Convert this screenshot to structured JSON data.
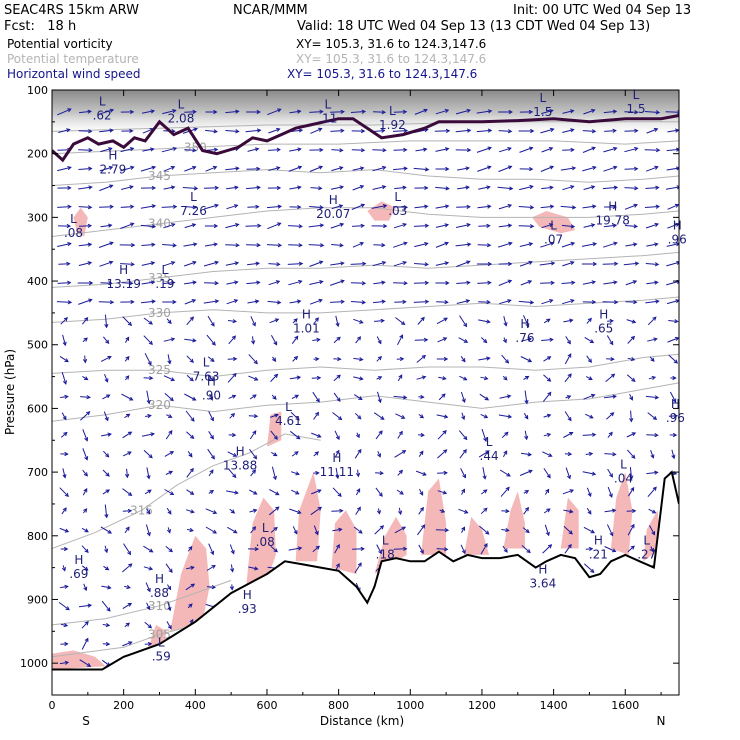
{
  "header": {
    "model": "SEAC4RS 15km ARW",
    "center": "NCAR/MMM",
    "init": "Init: 00 UTC Wed 04 Sep 13",
    "fcst": "Fcst:   18 h",
    "valid": "Valid: 18 UTC Wed 04 Sep 13 (13 CDT Wed 04 Sep 13)",
    "fields": [
      {
        "name": "Potential vorticity",
        "xy": "XY= 105.3, 31.6 to 124.3,147.6",
        "color": "#000000"
      },
      {
        "name": "Potential temperature",
        "xy": "XY= 105.3, 31.6 to 124.3,147.6",
        "color": "#b4b4b4"
      },
      {
        "name": "Horizontal wind speed",
        "xy": "XY= 105.3, 31.6 to 124.3,147.6",
        "color": "#14148c"
      }
    ]
  },
  "axes": {
    "xlabel": "Distance (km)",
    "ylabel": "Pressure (hPa)",
    "left_end": "S",
    "right_end": "N"
  },
  "chart_data": {
    "type": "cross-section",
    "xlabel": "Distance (km)",
    "ylabel": "Pressure (hPa)",
    "xlim": [
      0,
      1750
    ],
    "ylim": [
      1050,
      100
    ],
    "xticks": [
      0,
      200,
      400,
      600,
      800,
      1000,
      1200,
      1400,
      1600
    ],
    "yticks": [
      100,
      200,
      300,
      400,
      500,
      600,
      700,
      800,
      900,
      1000
    ],
    "theta_contours": [
      {
        "label": "305",
        "pts": [
          [
            0,
            990
          ],
          [
            200,
            975
          ],
          [
            300,
            955
          ],
          [
            400,
            940
          ],
          [
            500,
            915
          ],
          [
            600,
            890
          ]
        ]
      },
      {
        "label": "310",
        "pts": [
          [
            0,
            940
          ],
          [
            150,
            930
          ],
          [
            300,
            910
          ],
          [
            400,
            890
          ],
          [
            500,
            870
          ]
        ]
      },
      {
        "label": "315",
        "pts": [
          [
            0,
            820
          ],
          [
            120,
            795
          ],
          [
            250,
            760
          ],
          [
            350,
            720
          ],
          [
            450,
            690
          ],
          [
            550,
            670
          ],
          [
            650,
            640
          ],
          [
            750,
            650
          ]
        ]
      },
      {
        "label": "320",
        "pts": [
          [
            0,
            620
          ],
          [
            150,
            610
          ],
          [
            300,
            595
          ],
          [
            450,
            605
          ],
          [
            600,
            595
          ],
          [
            750,
            590
          ],
          [
            900,
            580
          ],
          [
            1050,
            590
          ],
          [
            1200,
            600
          ],
          [
            1350,
            590
          ],
          [
            1500,
            585
          ],
          [
            1650,
            570
          ],
          [
            1750,
            560
          ]
        ]
      },
      {
        "label": "325",
        "pts": [
          [
            0,
            545
          ],
          [
            150,
            540
          ],
          [
            300,
            540
          ],
          [
            450,
            550
          ],
          [
            600,
            540
          ],
          [
            750,
            535
          ],
          [
            900,
            540
          ],
          [
            1050,
            535
          ],
          [
            1200,
            535
          ],
          [
            1350,
            540
          ],
          [
            1500,
            535
          ],
          [
            1650,
            520
          ],
          [
            1750,
            515
          ]
        ]
      },
      {
        "label": "330",
        "pts": [
          [
            0,
            465
          ],
          [
            150,
            460
          ],
          [
            300,
            450
          ],
          [
            450,
            445
          ],
          [
            600,
            450
          ],
          [
            750,
            450
          ],
          [
            900,
            445
          ],
          [
            1050,
            440
          ],
          [
            1200,
            435
          ],
          [
            1350,
            440
          ],
          [
            1500,
            435
          ],
          [
            1650,
            430
          ],
          [
            1750,
            425
          ]
        ]
      },
      {
        "label": "335",
        "pts": [
          [
            0,
            410
          ],
          [
            150,
            405
          ],
          [
            300,
            395
          ],
          [
            450,
            385
          ],
          [
            600,
            380
          ],
          [
            750,
            380
          ],
          [
            900,
            375
          ],
          [
            1050,
            380
          ],
          [
            1200,
            375
          ],
          [
            1350,
            370
          ],
          [
            1500,
            365
          ],
          [
            1650,
            360
          ],
          [
            1750,
            355
          ]
        ]
      },
      {
        "label": "340",
        "pts": [
          [
            0,
            330
          ],
          [
            150,
            320
          ],
          [
            300,
            310
          ],
          [
            450,
            300
          ],
          [
            600,
            290
          ],
          [
            750,
            285
          ],
          [
            900,
            285
          ],
          [
            1050,
            295
          ],
          [
            1200,
            300
          ],
          [
            1350,
            300
          ],
          [
            1500,
            300
          ],
          [
            1650,
            295
          ],
          [
            1750,
            290
          ]
        ]
      },
      {
        "label": "345",
        "pts": [
          [
            0,
            250
          ],
          [
            150,
            245
          ],
          [
            300,
            235
          ],
          [
            450,
            230
          ],
          [
            600,
            225
          ],
          [
            750,
            230
          ],
          [
            900,
            225
          ],
          [
            1050,
            235
          ],
          [
            1200,
            240
          ],
          [
            1350,
            240
          ],
          [
            1500,
            245
          ],
          [
            1650,
            240
          ],
          [
            1750,
            235
          ]
        ]
      },
      {
        "label": "350",
        "pts": [
          [
            0,
            200
          ],
          [
            200,
            195
          ],
          [
            400,
            190
          ],
          [
            600,
            185
          ],
          [
            800,
            185
          ],
          [
            1000,
            180
          ],
          [
            1200,
            180
          ],
          [
            1400,
            180
          ],
          [
            1600,
            185
          ],
          [
            1750,
            180
          ]
        ]
      },
      {
        "label": "",
        "pts": [
          [
            0,
            165
          ],
          [
            300,
            160
          ],
          [
            600,
            155
          ],
          [
            900,
            155
          ],
          [
            1200,
            150
          ],
          [
            1500,
            150
          ],
          [
            1750,
            150
          ]
        ]
      }
    ],
    "pv_2pvu_line": [
      [
        0,
        195
      ],
      [
        30,
        210
      ],
      [
        60,
        185
      ],
      [
        100,
        175
      ],
      [
        130,
        185
      ],
      [
        170,
        180
      ],
      [
        200,
        190
      ],
      [
        230,
        175
      ],
      [
        260,
        180
      ],
      [
        300,
        150
      ],
      [
        340,
        170
      ],
      [
        380,
        160
      ],
      [
        420,
        195
      ],
      [
        460,
        200
      ],
      [
        520,
        190
      ],
      [
        560,
        175
      ],
      [
        600,
        180
      ],
      [
        640,
        170
      ],
      [
        680,
        160
      ],
      [
        720,
        155
      ],
      [
        760,
        150
      ],
      [
        800,
        145
      ],
      [
        840,
        145
      ],
      [
        880,
        160
      ],
      [
        920,
        175
      ],
      [
        980,
        170
      ],
      [
        1040,
        160
      ],
      [
        1080,
        150
      ],
      [
        1140,
        150
      ],
      [
        1200,
        150
      ],
      [
        1300,
        148
      ],
      [
        1400,
        145
      ],
      [
        1500,
        150
      ],
      [
        1600,
        145
      ],
      [
        1700,
        145
      ],
      [
        1750,
        140
      ]
    ],
    "terrain": [
      [
        0,
        1010
      ],
      [
        140,
        1010
      ],
      [
        200,
        990
      ],
      [
        300,
        970
      ],
      [
        400,
        935
      ],
      [
        500,
        890
      ],
      [
        600,
        860
      ],
      [
        650,
        840
      ],
      [
        700,
        845
      ],
      [
        750,
        850
      ],
      [
        800,
        855
      ],
      [
        850,
        880
      ],
      [
        880,
        905
      ],
      [
        900,
        880
      ],
      [
        920,
        840
      ],
      [
        960,
        835
      ],
      [
        1000,
        840
      ],
      [
        1040,
        840
      ],
      [
        1080,
        825
      ],
      [
        1120,
        840
      ],
      [
        1160,
        830
      ],
      [
        1200,
        835
      ],
      [
        1250,
        835
      ],
      [
        1300,
        830
      ],
      [
        1350,
        850
      ],
      [
        1380,
        840
      ],
      [
        1420,
        830
      ],
      [
        1460,
        835
      ],
      [
        1500,
        865
      ],
      [
        1530,
        860
      ],
      [
        1560,
        840
      ],
      [
        1600,
        830
      ],
      [
        1640,
        840
      ],
      [
        1680,
        850
      ],
      [
        1710,
        710
      ],
      [
        1730,
        700
      ],
      [
        1750,
        750
      ]
    ],
    "pv_shading_regions": [
      [
        [
          0,
          1010
        ],
        [
          0,
          985
        ],
        [
          60,
          980
        ],
        [
          120,
          990
        ],
        [
          150,
          1005
        ]
      ],
      [
        [
          270,
          975
        ],
        [
          290,
          940
        ],
        [
          320,
          950
        ],
        [
          310,
          975
        ]
      ],
      [
        [
          330,
          950
        ],
        [
          360,
          860
        ],
        [
          400,
          800
        ],
        [
          430,
          820
        ],
        [
          440,
          880
        ],
        [
          420,
          935
        ]
      ],
      [
        [
          540,
          890
        ],
        [
          560,
          780
        ],
        [
          590,
          740
        ],
        [
          620,
          760
        ],
        [
          625,
          830
        ],
        [
          600,
          870
        ]
      ],
      [
        [
          600,
          660
        ],
        [
          610,
          610
        ],
        [
          640,
          605
        ],
        [
          640,
          650
        ]
      ],
      [
        [
          680,
          840
        ],
        [
          690,
          760
        ],
        [
          730,
          700
        ],
        [
          750,
          760
        ],
        [
          740,
          840
        ]
      ],
      [
        [
          780,
          850
        ],
        [
          790,
          780
        ],
        [
          820,
          760
        ],
        [
          850,
          790
        ],
        [
          850,
          860
        ]
      ],
      [
        [
          900,
          860
        ],
        [
          930,
          800
        ],
        [
          960,
          770
        ],
        [
          990,
          800
        ],
        [
          990,
          830
        ]
      ],
      [
        [
          1030,
          830
        ],
        [
          1050,
          730
        ],
        [
          1080,
          710
        ],
        [
          1100,
          780
        ],
        [
          1100,
          830
        ]
      ],
      [
        [
          1150,
          830
        ],
        [
          1170,
          770
        ],
        [
          1200,
          790
        ],
        [
          1220,
          830
        ]
      ],
      [
        [
          1260,
          820
        ],
        [
          1280,
          760
        ],
        [
          1300,
          730
        ],
        [
          1320,
          780
        ],
        [
          1320,
          820
        ]
      ],
      [
        [
          1420,
          820
        ],
        [
          1440,
          740
        ],
        [
          1470,
          760
        ],
        [
          1470,
          820
        ]
      ],
      [
        [
          1560,
          820
        ],
        [
          1575,
          740
        ],
        [
          1600,
          700
        ],
        [
          1620,
          760
        ],
        [
          1610,
          830
        ]
      ],
      [
        [
          1650,
          840
        ],
        [
          1660,
          790
        ],
        [
          1690,
          760
        ],
        [
          1700,
          820
        ]
      ],
      [
        [
          60,
          300
        ],
        [
          80,
          285
        ],
        [
          100,
          300
        ],
        [
          90,
          330
        ],
        [
          70,
          325
        ]
      ],
      [
        [
          880,
          290
        ],
        [
          920,
          275
        ],
        [
          960,
          285
        ],
        [
          940,
          305
        ],
        [
          900,
          305
        ]
      ],
      [
        [
          1340,
          300
        ],
        [
          1380,
          290
        ],
        [
          1440,
          300
        ],
        [
          1460,
          320
        ],
        [
          1420,
          325
        ],
        [
          1360,
          315
        ]
      ]
    ],
    "extrema_labels": [
      {
        "kind": "L",
        "val": ".62",
        "x": 140,
        "p": 135
      },
      {
        "kind": "L",
        "val": "2.08",
        "x": 360,
        "p": 140
      },
      {
        "kind": "L",
        "val": ".11",
        "x": 770,
        "p": 140
      },
      {
        "kind": "L",
        "val": "1.92",
        "x": 950,
        "p": 150
      },
      {
        "kind": "L",
        "val": "1.5",
        "x": 1370,
        "p": 130
      },
      {
        "kind": "L",
        "val": "1.5",
        "x": 1630,
        "p": 125
      },
      {
        "kind": "H",
        "val": "2.79",
        "x": 170,
        "p": 220
      },
      {
        "kind": "L",
        "val": ".08",
        "x": 60,
        "p": 320
      },
      {
        "kind": "L",
        "val": "7.26",
        "x": 395,
        "p": 285
      },
      {
        "kind": "H",
        "val": "20.07",
        "x": 785,
        "p": 290
      },
      {
        "kind": "L",
        "val": ".03",
        "x": 965,
        "p": 285
      },
      {
        "kind": "H",
        "val": "19.78",
        "x": 1565,
        "p": 300
      },
      {
        "kind": "L",
        "val": ".07",
        "x": 1400,
        "p": 330
      },
      {
        "kind": "H",
        "val": ".96",
        "x": 1745,
        "p": 330
      },
      {
        "kind": "H",
        "val": "13.19",
        "x": 200,
        "p": 400
      },
      {
        "kind": "L",
        "val": ".19",
        "x": 315,
        "p": 400
      },
      {
        "kind": "H",
        "val": "1.01",
        "x": 710,
        "p": 470
      },
      {
        "kind": "H",
        "val": ".76",
        "x": 1320,
        "p": 485
      },
      {
        "kind": "H",
        "val": ".65",
        "x": 1540,
        "p": 470
      },
      {
        "kind": "L",
        "val": "7.63",
        "x": 430,
        "p": 545
      },
      {
        "kind": "H",
        "val": ".90",
        "x": 445,
        "p": 575
      },
      {
        "kind": "L",
        "val": "4.61",
        "x": 660,
        "p": 615
      },
      {
        "kind": "H",
        "val": ".96",
        "x": 1740,
        "p": 610
      },
      {
        "kind": "H",
        "val": "13.88",
        "x": 525,
        "p": 685
      },
      {
        "kind": "H",
        "val": "11.11",
        "x": 795,
        "p": 695
      },
      {
        "kind": "L",
        "val": ".44",
        "x": 1220,
        "p": 670
      },
      {
        "kind": "L",
        "val": ".04",
        "x": 1595,
        "p": 705
      },
      {
        "kind": "L",
        "val": ".08",
        "x": 595,
        "p": 805
      },
      {
        "kind": "L",
        "val": ".18",
        "x": 930,
        "p": 825
      },
      {
        "kind": "H",
        "val": ".21",
        "x": 1525,
        "p": 825
      },
      {
        "kind": "L",
        "val": ".27",
        "x": 1660,
        "p": 825
      },
      {
        "kind": "H",
        "val": ".69",
        "x": 75,
        "p": 855
      },
      {
        "kind": "H",
        "val": ".88",
        "x": 300,
        "p": 885
      },
      {
        "kind": "H",
        "val": ".93",
        "x": 545,
        "p": 910
      },
      {
        "kind": "H",
        "val": "3.64",
        "x": 1370,
        "p": 870
      },
      {
        "kind": "L",
        "val": ".59",
        "x": 305,
        "p": 985
      }
    ]
  }
}
